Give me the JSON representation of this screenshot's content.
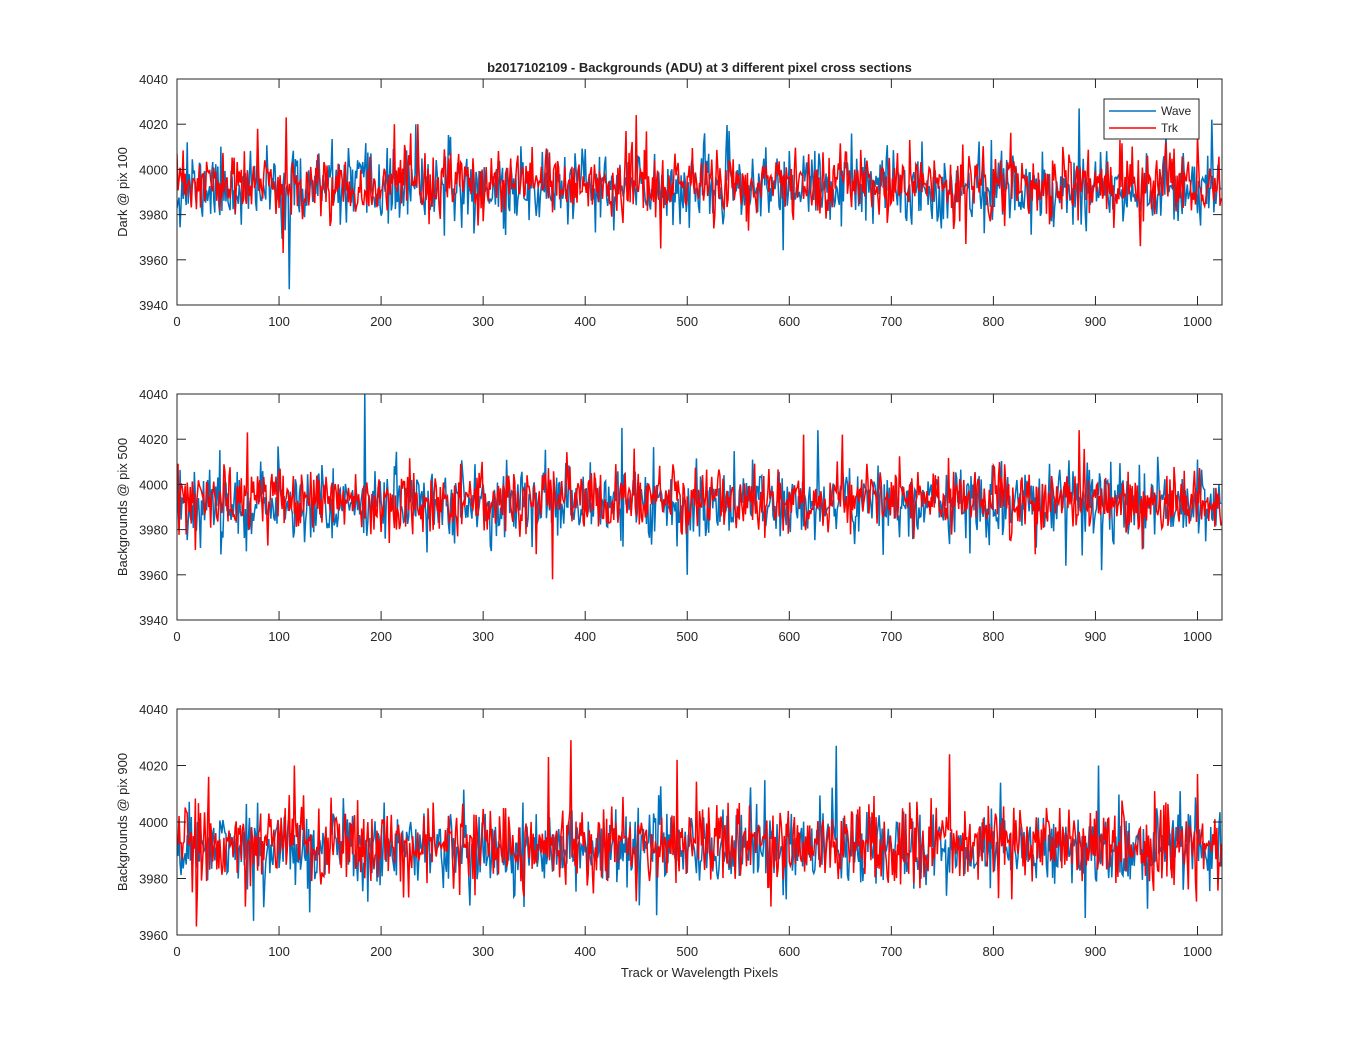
{
  "figure": {
    "colors": {
      "wave": "#0072BD",
      "trk": "#FF0000",
      "axes": "#262626",
      "background": "#ffffff"
    }
  },
  "chart_data": [
    {
      "type": "line",
      "title": "b2017102109 - Backgrounds (ADU) at 3 different pixel cross sections",
      "xlabel": "",
      "ylabel": "Dark @ pix 100",
      "xlim": [
        0,
        1024
      ],
      "ylim": [
        3940,
        4040
      ],
      "xticks": [
        0,
        100,
        200,
        300,
        400,
        500,
        600,
        700,
        800,
        900,
        1000
      ],
      "yticks": [
        3940,
        3960,
        3980,
        4000,
        4020,
        4040
      ],
      "legend": {
        "position": "top-right",
        "entries": [
          "Wave",
          "Trk"
        ]
      },
      "series": [
        {
          "name": "Wave",
          "color": "#0072BD",
          "generator": {
            "n": 1024,
            "mean": 3992,
            "sd": 8,
            "seed": 11
          },
          "spikes": [
            [
              110,
              3947
            ],
            [
              10,
              4012
            ],
            [
              234,
              4020
            ],
            [
              322,
              3971
            ],
            [
              428,
              3973
            ],
            [
              798,
              4013
            ],
            [
              884,
              4027
            ],
            [
              916,
              3997
            ],
            [
              1014,
              4022
            ],
            [
              57,
              3980
            ]
          ]
        },
        {
          "name": "Trk",
          "color": "#FF0000",
          "generator": {
            "n": 1024,
            "mean": 3993,
            "sd": 7,
            "seed": 23
          },
          "spikes": [
            [
              107,
              4023
            ],
            [
              104,
              3963
            ],
            [
              79,
              4018
            ],
            [
              213,
              4020
            ],
            [
              236,
              4020
            ],
            [
              450,
              4024
            ],
            [
              474,
              3965
            ],
            [
              440,
              4017
            ],
            [
              773,
              3967
            ],
            [
              944,
              3966
            ],
            [
              924,
              4013
            ],
            [
              1000,
              4015
            ]
          ]
        }
      ]
    },
    {
      "type": "line",
      "title": "",
      "xlabel": "",
      "ylabel": "Backgrounds @ pix 500",
      "xlim": [
        0,
        1024
      ],
      "ylim": [
        3940,
        4040
      ],
      "xticks": [
        0,
        100,
        200,
        300,
        400,
        500,
        600,
        700,
        800,
        900,
        1000
      ],
      "yticks": [
        3940,
        3960,
        3980,
        4000,
        4020,
        4040
      ],
      "series": [
        {
          "name": "Wave",
          "color": "#0072BD",
          "generator": {
            "n": 1024,
            "mean": 3992,
            "sd": 8,
            "seed": 37
          },
          "spikes": [
            [
              184,
              4040
            ],
            [
              436,
              4025
            ],
            [
              500,
              3960
            ],
            [
              628,
              4024
            ],
            [
              871,
              3964
            ],
            [
              906,
              3962
            ],
            [
              1000,
              4011
            ],
            [
              43,
              3969
            ]
          ]
        },
        {
          "name": "Trk",
          "color": "#FF0000",
          "generator": {
            "n": 1024,
            "mean": 3993,
            "sd": 7,
            "seed": 53
          },
          "spikes": [
            [
              69,
              4023
            ],
            [
              368,
              3958
            ],
            [
              884,
              4024
            ],
            [
              614,
              4022
            ],
            [
              652,
              4022
            ],
            [
              18,
              3971
            ],
            [
              275,
              3977
            ],
            [
              1025,
              3976
            ]
          ]
        }
      ]
    },
    {
      "type": "line",
      "title": "",
      "xlabel": "Track or Wavelength Pixels",
      "ylabel": "Backgrounds @ pix 900",
      "xlim": [
        0,
        1024
      ],
      "ylim": [
        3960,
        4040
      ],
      "xticks": [
        0,
        100,
        200,
        300,
        400,
        500,
        600,
        700,
        800,
        900,
        1000
      ],
      "yticks": [
        3960,
        3980,
        4000,
        4020,
        4040
      ],
      "series": [
        {
          "name": "Wave",
          "color": "#0072BD",
          "generator": {
            "n": 1024,
            "mean": 3991,
            "sd": 7,
            "seed": 71
          },
          "spikes": [
            [
              646,
              4027
            ],
            [
              75,
              3965
            ],
            [
              890,
              3966
            ],
            [
              470,
              3967
            ],
            [
              903,
              4020
            ],
            [
              130,
              3968
            ]
          ]
        },
        {
          "name": "Trk",
          "color": "#FF0000",
          "generator": {
            "n": 1024,
            "mean": 3992,
            "sd": 7,
            "seed": 89
          },
          "spikes": [
            [
              386,
              4029
            ],
            [
              19,
              3963
            ],
            [
              364,
              4023
            ],
            [
              490,
              4022
            ],
            [
              757,
              4024
            ],
            [
              115,
              4020
            ],
            [
              31,
              4016
            ],
            [
              1000,
              4017
            ]
          ]
        }
      ]
    }
  ]
}
